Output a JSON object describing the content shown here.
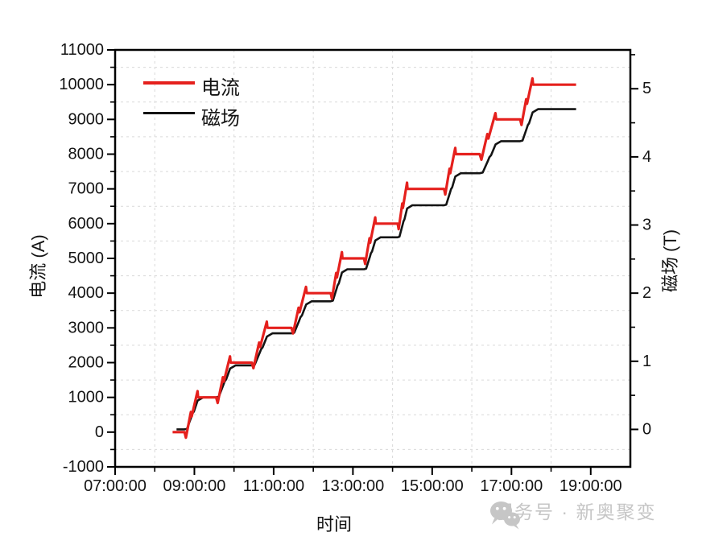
{
  "page": {
    "background": "#ffffff"
  },
  "watermark": {
    "logo": "wechat-icon",
    "text": "服务号 · 新奥聚变",
    "color": "#c6c6c6"
  },
  "chart_data": {
    "type": "line",
    "title": "",
    "xlabel": "时间",
    "ylabel_left": "电流 (A)",
    "ylabel_right": "磁场 (T)",
    "grid": true,
    "legend_position": "top-left-inside",
    "legend": [
      {
        "label": "电流",
        "color": "#e5201d"
      },
      {
        "label": "磁场",
        "color": "#141414"
      }
    ],
    "x_axis": {
      "min": 7,
      "max": 20,
      "major_tick_hours": [
        7,
        9,
        11,
        13,
        15,
        17,
        19
      ],
      "tick_labels": [
        "07:00:00",
        "09:00:00",
        "11:00:00",
        "13:00:00",
        "15:00:00",
        "17:00:00",
        "19:00:00"
      ],
      "minor_tick_hours": [
        8,
        10,
        12,
        14,
        16,
        18
      ],
      "grid_hours": [
        8,
        10,
        12,
        14,
        16,
        18
      ]
    },
    "y_left": {
      "min": -1000,
      "max": 11000,
      "major_ticks": [
        -1000,
        0,
        1000,
        2000,
        3000,
        4000,
        5000,
        6000,
        7000,
        8000,
        9000,
        10000,
        11000
      ],
      "tick_labels": [
        "-1000",
        "0",
        "1000",
        "2000",
        "3000",
        "4000",
        "5000",
        "6000",
        "7000",
        "8000",
        "9000",
        "10000",
        "11000"
      ],
      "minor_ticks": [
        -500,
        500,
        1500,
        2500,
        3500,
        4500,
        5500,
        6500,
        7500,
        8500,
        9500,
        10500
      ],
      "grid_values": [
        -500,
        500,
        1500,
        2500,
        3500,
        4500,
        5500,
        6500,
        7500,
        8500,
        9500,
        10500
      ]
    },
    "y_right": {
      "min": -0.55,
      "max": 5.57,
      "major_ticks": [
        0,
        1,
        2,
        3,
        4,
        5
      ],
      "tick_labels": [
        "0",
        "1",
        "2",
        "3",
        "4",
        "5"
      ],
      "minor_ticks": [
        0.5,
        1.5,
        2.5,
        3.5,
        4.5,
        5.5
      ]
    },
    "series": {
      "current": {
        "name": "电流",
        "color": "#e5201d",
        "axis": "left",
        "unit": "A",
        "steps": [
          {
            "t_start": 8.45,
            "t_end": 8.75,
            "A": 0
          },
          {
            "t_start": 9.1,
            "t_end": 9.55,
            "A": 1000
          },
          {
            "t_start": 9.92,
            "t_end": 10.45,
            "A": 2000
          },
          {
            "t_start": 10.85,
            "t_end": 11.45,
            "A": 3000
          },
          {
            "t_start": 11.84,
            "t_end": 12.44,
            "A": 4000
          },
          {
            "t_start": 12.74,
            "t_end": 13.28,
            "A": 5000
          },
          {
            "t_start": 13.58,
            "t_end": 14.13,
            "A": 6000
          },
          {
            "t_start": 14.38,
            "t_end": 15.3,
            "A": 7000
          },
          {
            "t_start": 15.6,
            "t_end": 16.2,
            "A": 8000
          },
          {
            "t_start": 16.62,
            "t_end": 17.22,
            "A": 9000
          },
          {
            "t_start": 17.55,
            "t_end": 18.63,
            "A": 10000
          }
        ],
        "ramp_style": {
          "dip_A": 160,
          "mid_up_frac": 0.58,
          "mid_dn_frac": 0.45,
          "overshoot_A": 180
        }
      },
      "field": {
        "name": "磁场",
        "color": "#141414",
        "axis": "right",
        "unit": "T",
        "levels_T": [
          0,
          0.47,
          0.94,
          1.41,
          1.88,
          2.35,
          2.82,
          3.29,
          3.76,
          4.23,
          4.7
        ],
        "lag_h": 0.12
      }
    }
  },
  "plot": {
    "frame_color": "#000000",
    "grid_color": "#d9d9d9",
    "tick_color": "#000000"
  }
}
